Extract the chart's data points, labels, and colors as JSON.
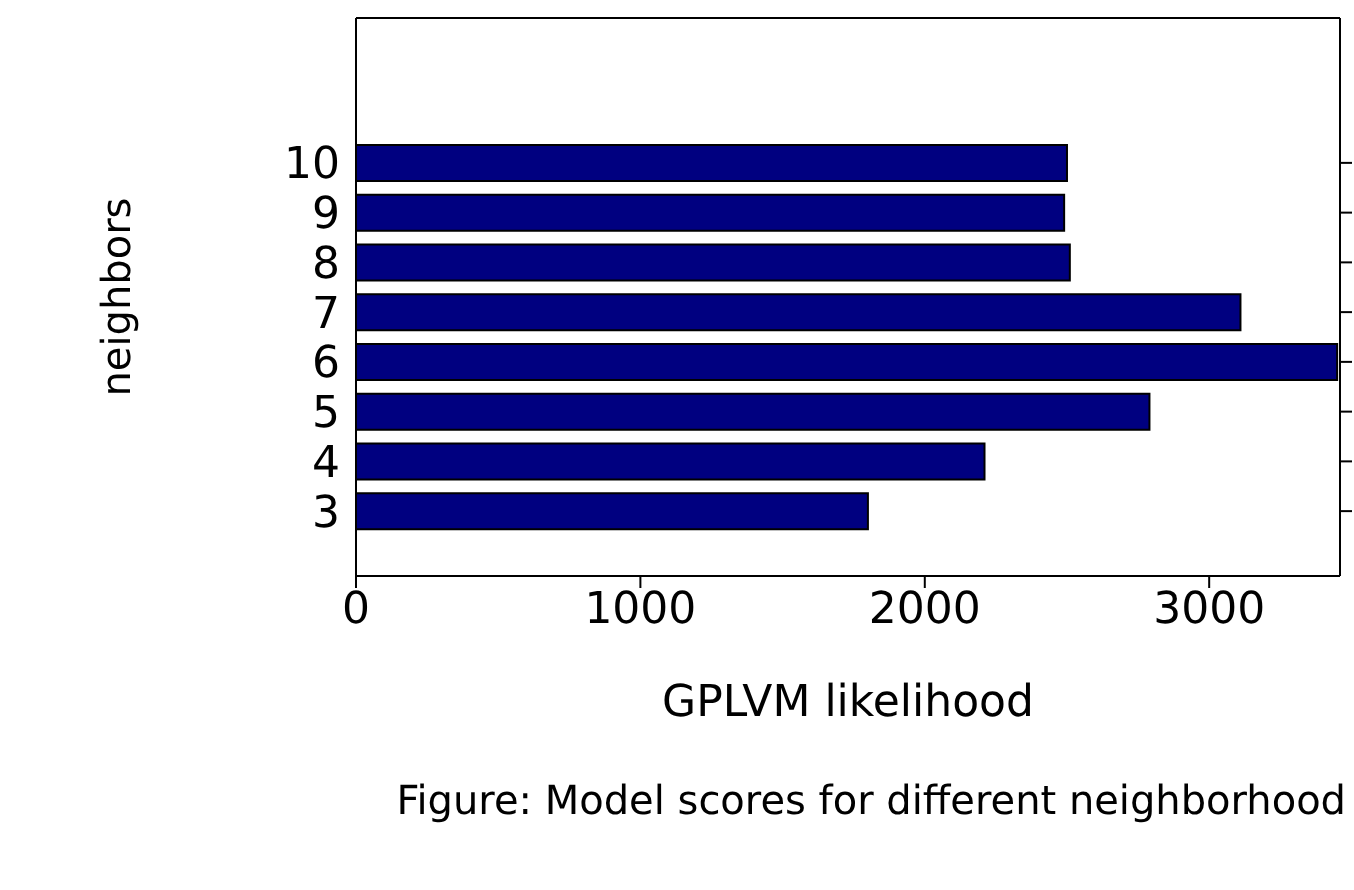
{
  "chart_data": {
    "type": "bar",
    "orientation": "horizontal",
    "categories": [
      "10",
      "9",
      "8",
      "7",
      "6",
      "5",
      "4",
      "3"
    ],
    "values": [
      2500,
      2490,
      2510,
      3110,
      3450,
      2790,
      2210,
      1800
    ],
    "color": "#000080",
    "xlim": [
      0,
      3460
    ],
    "xticks": [
      0,
      1000,
      2000,
      3000
    ],
    "xlabel": "GPLVM likelihood",
    "ylabel": "neighbors",
    "annotations": [
      "Figure: Model scores for different neighborhood"
    ]
  }
}
